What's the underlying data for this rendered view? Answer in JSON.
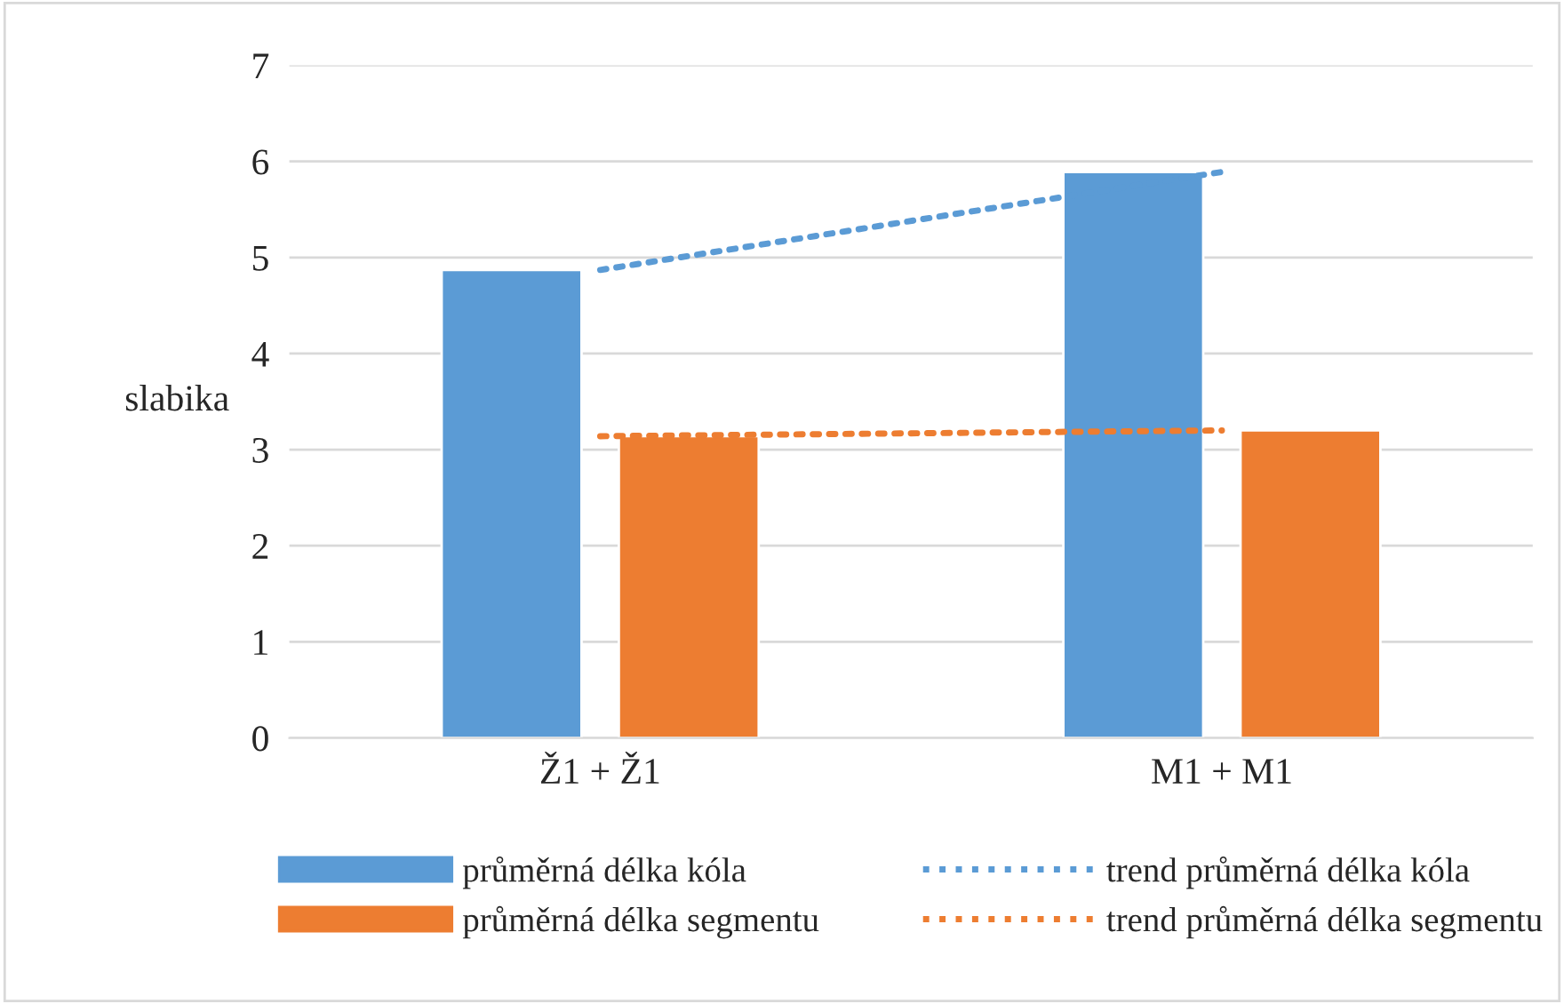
{
  "chart_data": {
    "type": "bar",
    "categories": [
      "Ž1 + Ž1",
      "M1 + M1"
    ],
    "ylabel": "slabika",
    "ylim": [
      0,
      7
    ],
    "yticks": [
      0,
      1,
      2,
      3,
      4,
      5,
      6,
      7
    ],
    "grid": "y",
    "legend": "bottom",
    "series": [
      {
        "name": "průměrná délka kóla",
        "color": "#5b9bd5",
        "values": [
          4.87,
          5.89
        ]
      },
      {
        "name": "průměrná délka segmentu",
        "color": "#ed7d31",
        "values": [
          3.14,
          3.2
        ]
      },
      {
        "name": "trend průměrná délka kóla",
        "type": "line",
        "line_style": "dotted",
        "color": "#5b9bd5",
        "values": [
          4.87,
          5.89
        ]
      },
      {
        "name": "trend průměrná délka segmentu",
        "type": "line",
        "line_style": "dotted",
        "color": "#ed7d31",
        "values": [
          3.14,
          3.2
        ]
      }
    ]
  }
}
